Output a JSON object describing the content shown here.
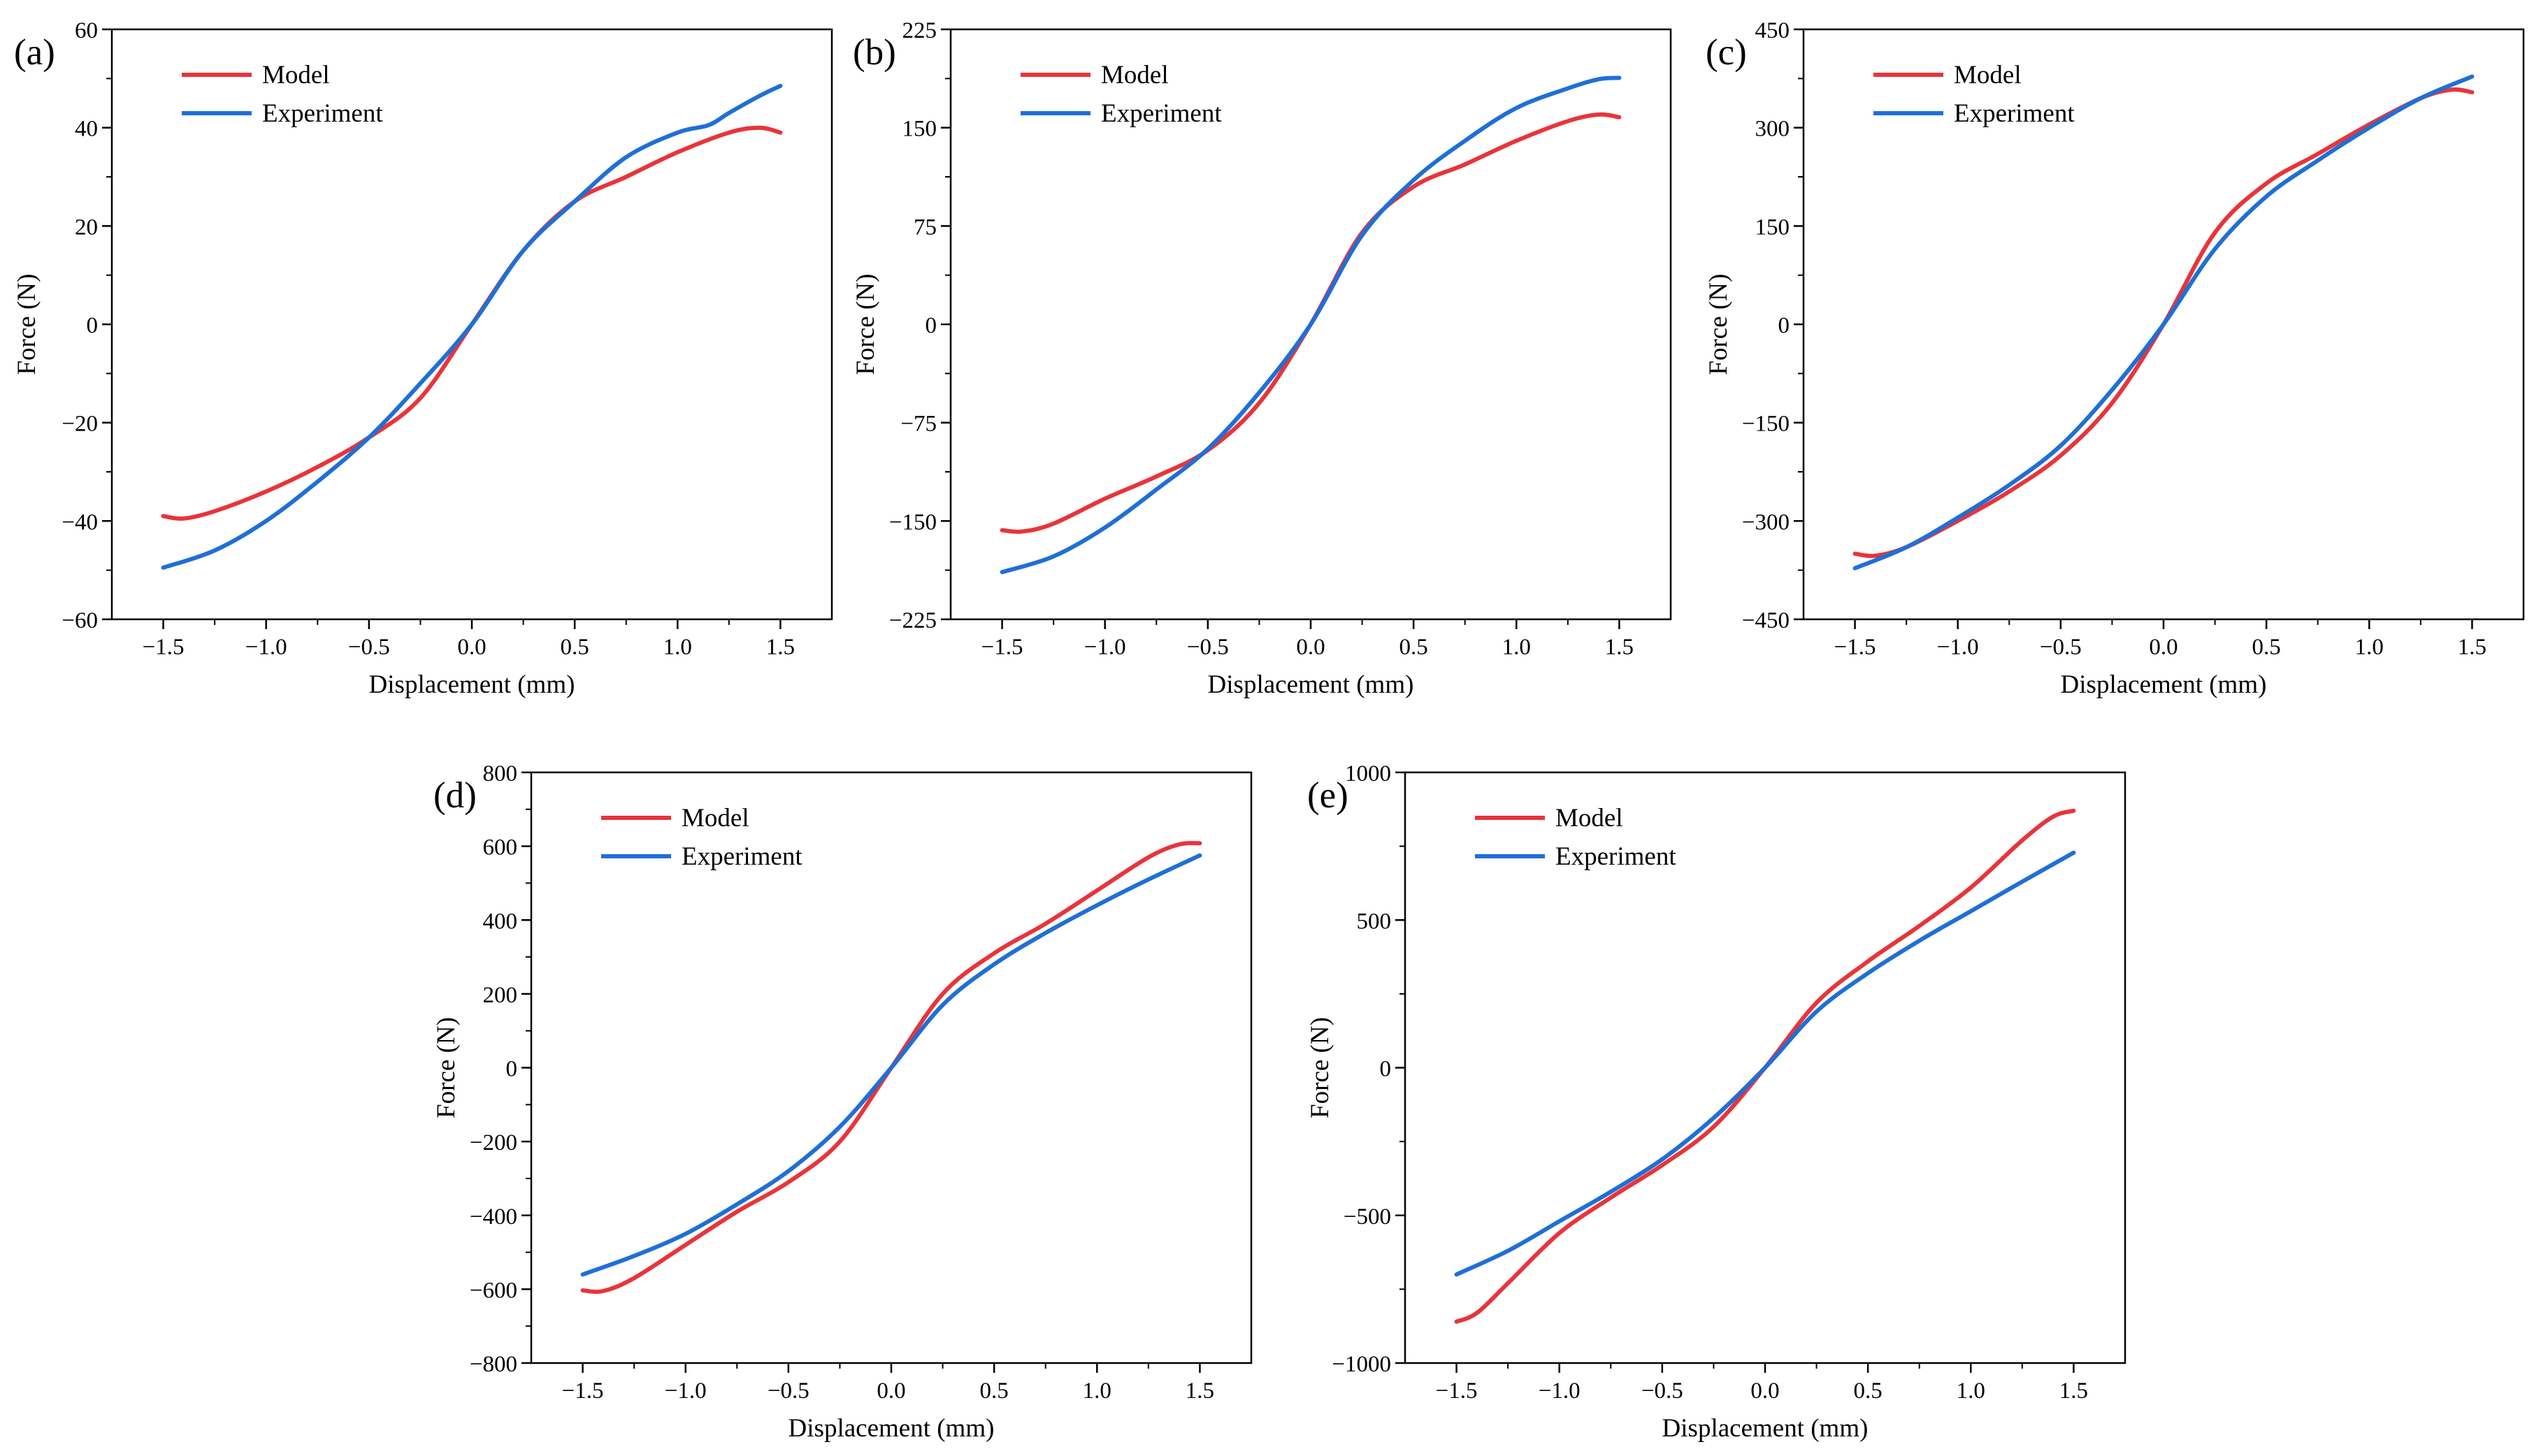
{
  "colors": {
    "model": "#e8343a",
    "experiment": "#1f6fd6",
    "axis": "#000000"
  },
  "chart_data": [
    {
      "type": "line",
      "panel_label": "(a)",
      "xlabel": "Displacement (mm)",
      "ylabel": "Force (N)",
      "xlim": [
        -1.75,
        1.75
      ],
      "ylim": [
        -60,
        60
      ],
      "xticks": [
        -1.5,
        -1.0,
        -0.5,
        0.0,
        0.5,
        1.0,
        1.5
      ],
      "xtick_labels": [
        "−1.5",
        "−1.0",
        "−0.5",
        "0.0",
        "0.5",
        "1.0",
        "1.5"
      ],
      "yticks": [
        -60,
        -40,
        -20,
        0,
        20,
        40,
        60
      ],
      "ytick_labels": [
        "−60",
        "−40",
        "−20",
        "0",
        "20",
        "40",
        "60"
      ],
      "legend": [
        "Model",
        "Experiment"
      ],
      "legend_position": "top-left",
      "series": [
        {
          "name": "Model",
          "x": [
            -1.5,
            -1.4,
            -1.25,
            -1.0,
            -0.75,
            -0.5,
            -0.25,
            0.0,
            0.25,
            0.5,
            0.75,
            1.0,
            1.25,
            1.4,
            1.5
          ],
          "y": [
            -39,
            -39.5,
            -38,
            -34,
            -29,
            -23,
            -15,
            0,
            15,
            25,
            30,
            35,
            39,
            40,
            39
          ]
        },
        {
          "name": "Experiment",
          "x": [
            -1.5,
            -1.25,
            -1.0,
            -0.75,
            -0.5,
            -0.25,
            0.0,
            0.25,
            0.5,
            0.75,
            1.0,
            1.15,
            1.25,
            1.4,
            1.5
          ],
          "y": [
            -49.5,
            -46,
            -40,
            -32,
            -23,
            -12,
            0,
            15,
            25,
            34,
            39,
            40.5,
            43,
            46.5,
            48.5
          ]
        }
      ]
    },
    {
      "type": "line",
      "panel_label": "(b)",
      "xlabel": "Displacement (mm)",
      "ylabel": "Force (N)",
      "xlim": [
        -1.75,
        1.75
      ],
      "ylim": [
        -225,
        225
      ],
      "xticks": [
        -1.5,
        -1.0,
        -0.5,
        0.0,
        0.5,
        1.0,
        1.5
      ],
      "xtick_labels": [
        "−1.5",
        "−1.0",
        "−0.5",
        "0.0",
        "0.5",
        "1.0",
        "1.5"
      ],
      "yticks": [
        -225,
        -150,
        -75,
        0,
        75,
        150,
        225
      ],
      "ytick_labels": [
        "−225",
        "−150",
        "−75",
        "0",
        "75",
        "150",
        "225"
      ],
      "legend": [
        "Model",
        "Experiment"
      ],
      "legend_position": "top-left",
      "series": [
        {
          "name": "Model",
          "x": [
            -1.5,
            -1.4,
            -1.25,
            -1.0,
            -0.75,
            -0.5,
            -0.25,
            0.0,
            0.25,
            0.5,
            0.75,
            1.0,
            1.25,
            1.4,
            1.5
          ],
          "y": [
            -157,
            -158,
            -152,
            -133,
            -116,
            -96,
            -60,
            0,
            70,
            105,
            122,
            140,
            155,
            160,
            158
          ]
        },
        {
          "name": "Experiment",
          "x": [
            -1.5,
            -1.25,
            -1.0,
            -0.75,
            -0.5,
            -0.25,
            0.0,
            0.25,
            0.5,
            0.75,
            1.0,
            1.25,
            1.4,
            1.5
          ],
          "y": [
            -189,
            -177,
            -155,
            -126,
            -95,
            -52,
            0,
            68,
            110,
            140,
            165,
            180,
            187,
            188
          ]
        }
      ]
    },
    {
      "type": "line",
      "panel_label": "(c)",
      "xlabel": "Displacement (mm)",
      "ylabel": "Force (N)",
      "xlim": [
        -1.75,
        1.75
      ],
      "ylim": [
        -450,
        450
      ],
      "xticks": [
        -1.5,
        -1.0,
        -0.5,
        0.0,
        0.5,
        1.0,
        1.5
      ],
      "xtick_labels": [
        "−1.5",
        "−1.0",
        "−0.5",
        "0.0",
        "0.5",
        "1.0",
        "1.5"
      ],
      "yticks": [
        -450,
        -300,
        -150,
        0,
        150,
        300,
        450
      ],
      "ytick_labels": [
        "−450",
        "−300",
        "−150",
        "0",
        "150",
        "300",
        "450"
      ],
      "legend": [
        "Model",
        "Experiment"
      ],
      "legend_position": "top-left",
      "series": [
        {
          "name": "Model",
          "x": [
            -1.5,
            -1.4,
            -1.25,
            -1.0,
            -0.75,
            -0.5,
            -0.25,
            0.0,
            0.25,
            0.5,
            0.75,
            1.0,
            1.25,
            1.4,
            1.5
          ],
          "y": [
            -350,
            -353,
            -340,
            -300,
            -255,
            -200,
            -120,
            0,
            140,
            215,
            260,
            305,
            345,
            358,
            354
          ]
        },
        {
          "name": "Experiment",
          "x": [
            -1.5,
            -1.25,
            -1.0,
            -0.75,
            -0.5,
            -0.25,
            0.0,
            0.25,
            0.5,
            0.75,
            1.0,
            1.25,
            1.5
          ],
          "y": [
            -372,
            -340,
            -295,
            -245,
            -185,
            -100,
            0,
            115,
            195,
            250,
            300,
            345,
            378
          ]
        }
      ]
    },
    {
      "type": "line",
      "panel_label": "(d)",
      "xlabel": "Displacement (mm)",
      "ylabel": "Force (N)",
      "xlim": [
        -1.75,
        1.75
      ],
      "ylim": [
        -800,
        800
      ],
      "xticks": [
        -1.5,
        -1.0,
        -0.5,
        0.0,
        0.5,
        1.0,
        1.5
      ],
      "xtick_labels": [
        "−1.5",
        "−1.0",
        "−0.5",
        "0.0",
        "0.5",
        "1.0",
        "1.5"
      ],
      "yticks": [
        -800,
        -600,
        -400,
        -200,
        0,
        200,
        400,
        600,
        800
      ],
      "ytick_labels": [
        "−800",
        "−600",
        "−400",
        "−200",
        "0",
        "200",
        "400",
        "600",
        "800"
      ],
      "legend": [
        "Model",
        "Experiment"
      ],
      "legend_position": "top-left",
      "series": [
        {
          "name": "Model",
          "x": [
            -1.5,
            -1.4,
            -1.25,
            -1.0,
            -0.75,
            -0.5,
            -0.25,
            0.0,
            0.25,
            0.5,
            0.75,
            1.0,
            1.25,
            1.4,
            1.5
          ],
          "y": [
            -603,
            -605,
            -570,
            -480,
            -390,
            -310,
            -200,
            0,
            200,
            310,
            390,
            480,
            570,
            605,
            608
          ]
        },
        {
          "name": "Experiment",
          "x": [
            -1.5,
            -1.25,
            -1.0,
            -0.75,
            -0.5,
            -0.25,
            0.0,
            0.25,
            0.5,
            0.75,
            1.0,
            1.25,
            1.5
          ],
          "y": [
            -560,
            -510,
            -450,
            -370,
            -280,
            -160,
            0,
            170,
            280,
            365,
            440,
            510,
            575
          ]
        }
      ]
    },
    {
      "type": "line",
      "panel_label": "(e)",
      "xlabel": "Displacement (mm)",
      "ylabel": "Force (N)",
      "xlim": [
        -1.75,
        1.75
      ],
      "ylim": [
        -1000,
        1000
      ],
      "xticks": [
        -1.5,
        -1.0,
        -0.5,
        0.0,
        0.5,
        1.0,
        1.5
      ],
      "xtick_labels": [
        "−1.5",
        "−1.0",
        "−0.5",
        "0.0",
        "0.5",
        "1.0",
        "1.5"
      ],
      "yticks": [
        -1000,
        -500,
        0,
        500,
        1000
      ],
      "ytick_labels": [
        "−1000",
        "−500",
        "0",
        "500",
        "1000"
      ],
      "legend": [
        "Model",
        "Experiment"
      ],
      "legend_position": "top-left",
      "series": [
        {
          "name": "Model",
          "x": [
            -1.5,
            -1.4,
            -1.25,
            -1.0,
            -0.75,
            -0.5,
            -0.25,
            0.0,
            0.25,
            0.5,
            0.75,
            1.0,
            1.25,
            1.4,
            1.5
          ],
          "y": [
            -860,
            -830,
            -730,
            -560,
            -440,
            -330,
            -200,
            0,
            220,
            360,
            480,
            610,
            770,
            850,
            870
          ]
        },
        {
          "name": "Experiment",
          "x": [
            -1.5,
            -1.25,
            -1.0,
            -0.75,
            -0.5,
            -0.25,
            0.0,
            0.25,
            0.5,
            0.75,
            1.0,
            1.25,
            1.5
          ],
          "y": [
            -700,
            -620,
            -520,
            -420,
            -310,
            -170,
            0,
            190,
            320,
            430,
            530,
            630,
            728
          ]
        }
      ]
    }
  ]
}
